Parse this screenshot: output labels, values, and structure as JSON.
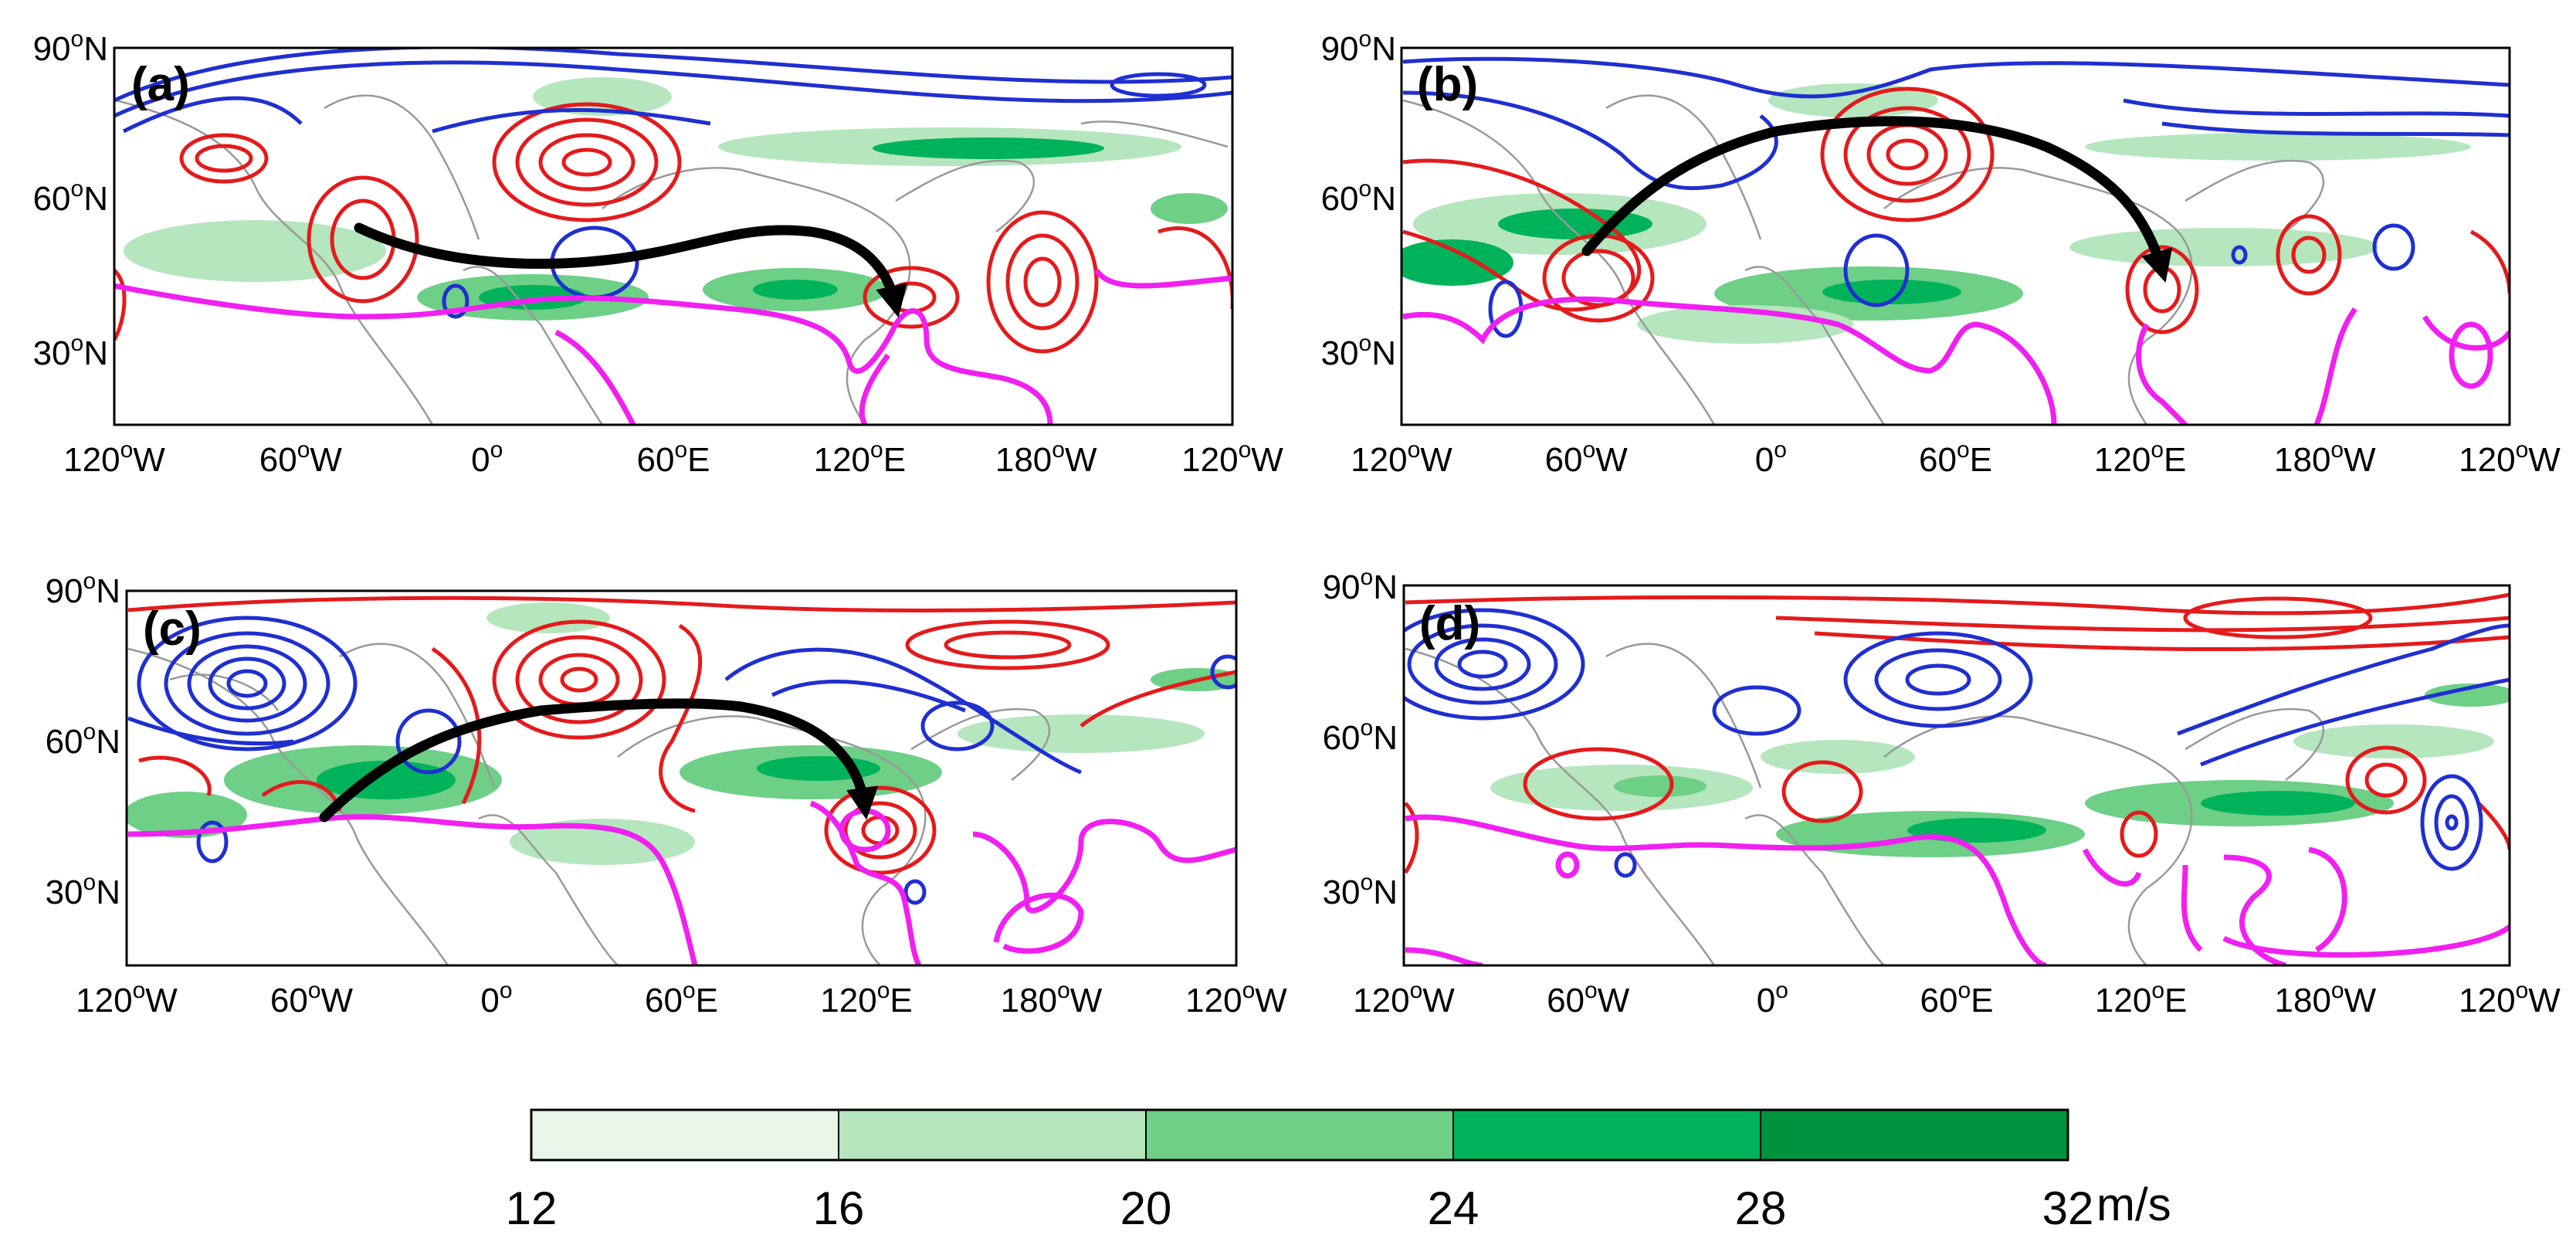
{
  "figure": {
    "panels": [
      {
        "label": "(a)"
      },
      {
        "label": "(b)"
      },
      {
        "label": "(c)"
      },
      {
        "label": "(d)"
      }
    ],
    "lat_ticks": [
      "90",
      "60",
      "30"
    ],
    "lat_suffix": "N",
    "lon_ticks": [
      {
        "num": "120",
        "suffix": "W"
      },
      {
        "num": "60",
        "suffix": "W"
      },
      {
        "num": "0",
        "suffix": ""
      },
      {
        "num": "60",
        "suffix": "E"
      },
      {
        "num": "120",
        "suffix": "E"
      },
      {
        "num": "180",
        "suffix": "W"
      },
      {
        "num": "120",
        "suffix": "W"
      }
    ],
    "degree_symbol": "o"
  },
  "colorbar": {
    "ticks": [
      "12",
      "16",
      "20",
      "24",
      "28",
      "32"
    ],
    "unit": "m/s",
    "colors": [
      "#e8f6e9",
      "#b5e6bd",
      "#6ecf86",
      "#00b35a",
      "#00933e"
    ]
  },
  "legend_colors": {
    "positive": "#e41a1c",
    "negative": "#1f2fd0",
    "jet_axis": "#f020f0",
    "arrow": "#000000"
  }
}
